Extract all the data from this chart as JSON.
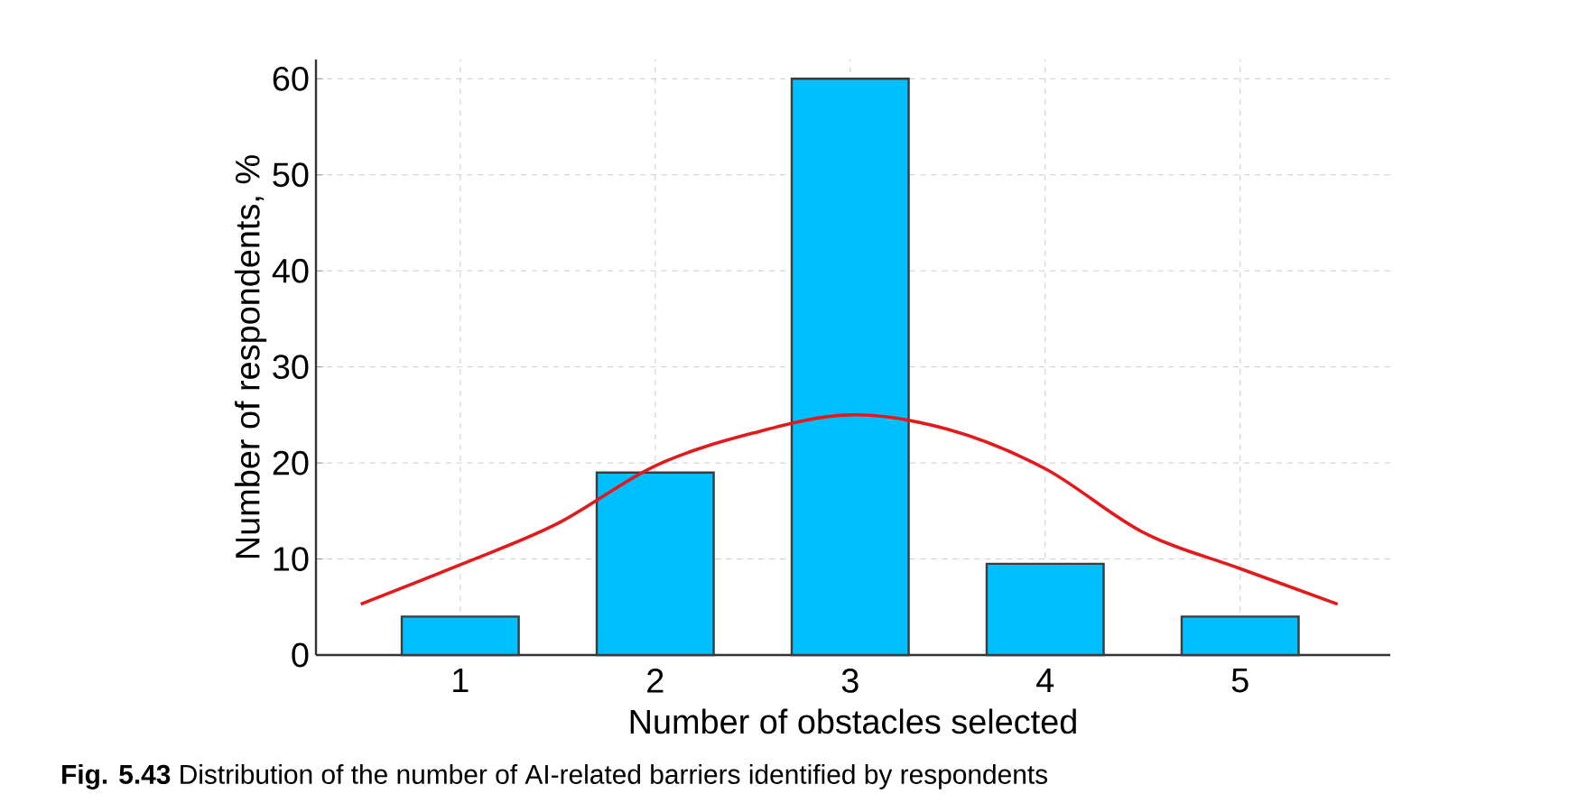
{
  "chart_data": {
    "type": "bar",
    "xlabel": "Number of obstacles selected",
    "ylabel": "Number of respondents, %",
    "x": [
      1,
      2,
      3,
      4,
      5
    ],
    "xlim": [
      0.26,
      5.77
    ],
    "xticks": [
      1,
      2,
      3,
      4,
      5
    ],
    "ylim": [
      0,
      62
    ],
    "yticks": [
      0,
      10,
      20,
      30,
      40,
      50,
      60
    ],
    "grid": true,
    "series": [
      {
        "color": "#00bfff",
        "values": [
          4,
          19,
          60,
          9.5,
          4
        ]
      },
      {
        "type": "line",
        "color": "#e31a1c",
        "x": [
          0.49,
          1,
          1.5,
          2,
          2.5,
          3,
          3.5,
          4,
          4.5,
          5,
          5.5
        ],
        "values": [
          5.3,
          9.4,
          13.7,
          19.7,
          23.1,
          25,
          23.5,
          19.4,
          12.8,
          9.0,
          5.3
        ]
      }
    ],
    "annotations": [
      "**Fig. 5.43** Distribution of the number of AI-related barriers identified by respondents"
    ]
  }
}
